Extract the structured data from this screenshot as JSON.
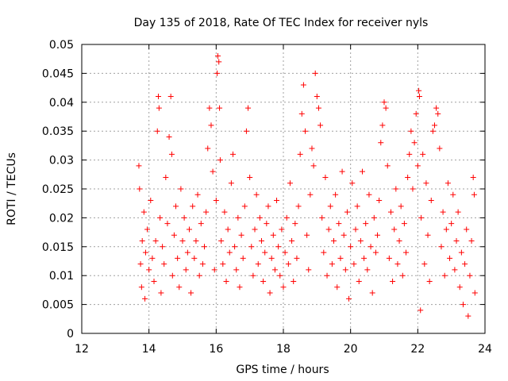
{
  "chart_data": {
    "type": "scatter",
    "title": "Day 135 of 2018, Rate Of TEC Index for receiver nyls",
    "xlabel": "GPS time / hours",
    "ylabel": "ROTI / TECUs",
    "xlim": [
      12,
      24
    ],
    "ylim": [
      0,
      0.05
    ],
    "x_ticks": [
      12,
      14,
      16,
      18,
      20,
      22,
      24
    ],
    "x_tick_labels": [
      "12",
      "14",
      "16",
      "18",
      "20",
      "22",
      "24"
    ],
    "y_ticks": [
      0,
      0.005,
      0.01,
      0.015,
      0.02,
      0.025,
      0.03,
      0.035,
      0.04,
      0.045,
      0.05
    ],
    "y_tick_labels": [
      "0",
      "0.005",
      "0.01",
      "0.015",
      "0.02",
      "0.025",
      "0.03",
      "0.035",
      "0.04",
      "0.045",
      "0.05"
    ],
    "grid": true,
    "marker": "+",
    "color": "#ff0000",
    "series": [
      {
        "name": "ROTI",
        "points": [
          [
            13.7,
            0.029
          ],
          [
            13.72,
            0.025
          ],
          [
            13.75,
            0.012
          ],
          [
            13.78,
            0.008
          ],
          [
            13.8,
            0.016
          ],
          [
            13.85,
            0.021
          ],
          [
            13.88,
            0.006
          ],
          [
            13.9,
            0.014
          ],
          [
            13.95,
            0.018
          ],
          [
            14.0,
            0.011
          ],
          [
            14.05,
            0.023
          ],
          [
            14.1,
            0.013
          ],
          [
            14.15,
            0.009
          ],
          [
            14.2,
            0.016
          ],
          [
            14.25,
            0.035
          ],
          [
            14.28,
            0.041
          ],
          [
            14.3,
            0.039
          ],
          [
            14.33,
            0.02
          ],
          [
            14.36,
            0.007
          ],
          [
            14.4,
            0.015
          ],
          [
            14.45,
            0.012
          ],
          [
            14.5,
            0.027
          ],
          [
            14.55,
            0.019
          ],
          [
            14.6,
            0.034
          ],
          [
            14.65,
            0.041
          ],
          [
            14.68,
            0.031
          ],
          [
            14.7,
            0.01
          ],
          [
            14.75,
            0.017
          ],
          [
            14.8,
            0.022
          ],
          [
            14.85,
            0.013
          ],
          [
            14.9,
            0.008
          ],
          [
            14.95,
            0.025
          ],
          [
            15.0,
            0.016
          ],
          [
            15.05,
            0.02
          ],
          [
            15.1,
            0.011
          ],
          [
            15.15,
            0.014
          ],
          [
            15.2,
            0.018
          ],
          [
            15.25,
            0.007
          ],
          [
            15.3,
            0.022
          ],
          [
            15.35,
            0.013
          ],
          [
            15.4,
            0.016
          ],
          [
            15.45,
            0.024
          ],
          [
            15.5,
            0.01
          ],
          [
            15.55,
            0.019
          ],
          [
            15.6,
            0.012
          ],
          [
            15.65,
            0.015
          ],
          [
            15.7,
            0.021
          ],
          [
            15.75,
            0.032
          ],
          [
            15.8,
            0.039
          ],
          [
            15.85,
            0.036
          ],
          [
            15.9,
            0.028
          ],
          [
            15.95,
            0.011
          ],
          [
            16.0,
            0.023
          ],
          [
            16.03,
            0.045
          ],
          [
            16.05,
            0.048
          ],
          [
            16.08,
            0.047
          ],
          [
            16.1,
            0.039
          ],
          [
            16.12,
            0.03
          ],
          [
            16.15,
            0.016
          ],
          [
            16.2,
            0.012
          ],
          [
            16.25,
            0.021
          ],
          [
            16.3,
            0.009
          ],
          [
            16.35,
            0.018
          ],
          [
            16.4,
            0.014
          ],
          [
            16.45,
            0.026
          ],
          [
            16.5,
            0.031
          ],
          [
            16.55,
            0.015
          ],
          [
            16.6,
            0.011
          ],
          [
            16.65,
            0.02
          ],
          [
            16.7,
            0.008
          ],
          [
            16.75,
            0.017
          ],
          [
            16.8,
            0.013
          ],
          [
            16.85,
            0.022
          ],
          [
            16.9,
            0.035
          ],
          [
            16.95,
            0.039
          ],
          [
            17.0,
            0.027
          ],
          [
            17.05,
            0.015
          ],
          [
            17.1,
            0.01
          ],
          [
            17.15,
            0.018
          ],
          [
            17.2,
            0.024
          ],
          [
            17.25,
            0.012
          ],
          [
            17.3,
            0.02
          ],
          [
            17.35,
            0.016
          ],
          [
            17.4,
            0.009
          ],
          [
            17.45,
            0.014
          ],
          [
            17.5,
            0.019
          ],
          [
            17.55,
            0.022
          ],
          [
            17.6,
            0.007
          ],
          [
            17.65,
            0.013
          ],
          [
            17.7,
            0.017
          ],
          [
            17.75,
            0.011
          ],
          [
            17.8,
            0.023
          ],
          [
            17.85,
            0.015
          ],
          [
            17.9,
            0.01
          ],
          [
            17.95,
            0.018
          ],
          [
            18.0,
            0.008
          ],
          [
            18.05,
            0.014
          ],
          [
            18.1,
            0.02
          ],
          [
            18.15,
            0.012
          ],
          [
            18.2,
            0.026
          ],
          [
            18.25,
            0.016
          ],
          [
            18.3,
            0.009
          ],
          [
            18.35,
            0.019
          ],
          [
            18.4,
            0.013
          ],
          [
            18.45,
            0.022
          ],
          [
            18.5,
            0.031
          ],
          [
            18.55,
            0.038
          ],
          [
            18.6,
            0.043
          ],
          [
            18.65,
            0.035
          ],
          [
            18.7,
            0.017
          ],
          [
            18.75,
            0.011
          ],
          [
            18.8,
            0.024
          ],
          [
            18.85,
            0.032
          ],
          [
            18.9,
            0.029
          ],
          [
            18.95,
            0.045
          ],
          [
            19.0,
            0.041
          ],
          [
            19.05,
            0.039
          ],
          [
            19.1,
            0.036
          ],
          [
            19.15,
            0.02
          ],
          [
            19.2,
            0.014
          ],
          [
            19.25,
            0.027
          ],
          [
            19.3,
            0.01
          ],
          [
            19.35,
            0.018
          ],
          [
            19.4,
            0.022
          ],
          [
            19.45,
            0.012
          ],
          [
            19.5,
            0.016
          ],
          [
            19.55,
            0.024
          ],
          [
            19.6,
            0.008
          ],
          [
            19.65,
            0.019
          ],
          [
            19.7,
            0.013
          ],
          [
            19.75,
            0.028
          ],
          [
            19.8,
            0.017
          ],
          [
            19.85,
            0.011
          ],
          [
            19.9,
            0.021
          ],
          [
            19.95,
            0.006
          ],
          [
            20.0,
            0.015
          ],
          [
            20.05,
            0.026
          ],
          [
            20.1,
            0.012
          ],
          [
            20.15,
            0.018
          ],
          [
            20.2,
            0.022
          ],
          [
            20.25,
            0.009
          ],
          [
            20.3,
            0.016
          ],
          [
            20.35,
            0.028
          ],
          [
            20.4,
            0.013
          ],
          [
            20.45,
            0.019
          ],
          [
            20.5,
            0.011
          ],
          [
            20.55,
            0.024
          ],
          [
            20.6,
            0.015
          ],
          [
            20.65,
            0.007
          ],
          [
            20.7,
            0.02
          ],
          [
            20.75,
            0.014
          ],
          [
            20.8,
            0.017
          ],
          [
            20.85,
            0.023
          ],
          [
            20.9,
            0.033
          ],
          [
            20.95,
            0.036
          ],
          [
            21.0,
            0.04
          ],
          [
            21.05,
            0.039
          ],
          [
            21.1,
            0.029
          ],
          [
            21.15,
            0.013
          ],
          [
            21.2,
            0.021
          ],
          [
            21.25,
            0.009
          ],
          [
            21.3,
            0.018
          ],
          [
            21.35,
            0.025
          ],
          [
            21.4,
            0.012
          ],
          [
            21.45,
            0.016
          ],
          [
            21.5,
            0.022
          ],
          [
            21.55,
            0.01
          ],
          [
            21.6,
            0.019
          ],
          [
            21.65,
            0.014
          ],
          [
            21.7,
            0.027
          ],
          [
            21.75,
            0.031
          ],
          [
            21.8,
            0.035
          ],
          [
            21.85,
            0.025
          ],
          [
            21.9,
            0.033
          ],
          [
            21.95,
            0.038
          ],
          [
            22.0,
            0.029
          ],
          [
            22.03,
            0.042
          ],
          [
            22.05,
            0.041
          ],
          [
            22.08,
            0.004
          ],
          [
            22.1,
            0.02
          ],
          [
            22.15,
            0.031
          ],
          [
            22.2,
            0.012
          ],
          [
            22.25,
            0.026
          ],
          [
            22.3,
            0.017
          ],
          [
            22.35,
            0.009
          ],
          [
            22.4,
            0.023
          ],
          [
            22.45,
            0.035
          ],
          [
            22.5,
            0.036
          ],
          [
            22.55,
            0.039
          ],
          [
            22.6,
            0.038
          ],
          [
            22.65,
            0.032
          ],
          [
            22.7,
            0.015
          ],
          [
            22.75,
            0.021
          ],
          [
            22.8,
            0.01
          ],
          [
            22.85,
            0.018
          ],
          [
            22.9,
            0.026
          ],
          [
            22.95,
            0.013
          ],
          [
            23.0,
            0.019
          ],
          [
            23.05,
            0.024
          ],
          [
            23.1,
            0.011
          ],
          [
            23.15,
            0.016
          ],
          [
            23.2,
            0.021
          ],
          [
            23.25,
            0.008
          ],
          [
            23.3,
            0.014
          ],
          [
            23.35,
            0.005
          ],
          [
            23.4,
            0.012
          ],
          [
            23.45,
            0.018
          ],
          [
            23.5,
            0.003
          ],
          [
            23.55,
            0.01
          ],
          [
            23.6,
            0.016
          ],
          [
            23.65,
            0.027
          ],
          [
            23.68,
            0.024
          ],
          [
            23.7,
            0.007
          ]
        ]
      }
    ]
  }
}
